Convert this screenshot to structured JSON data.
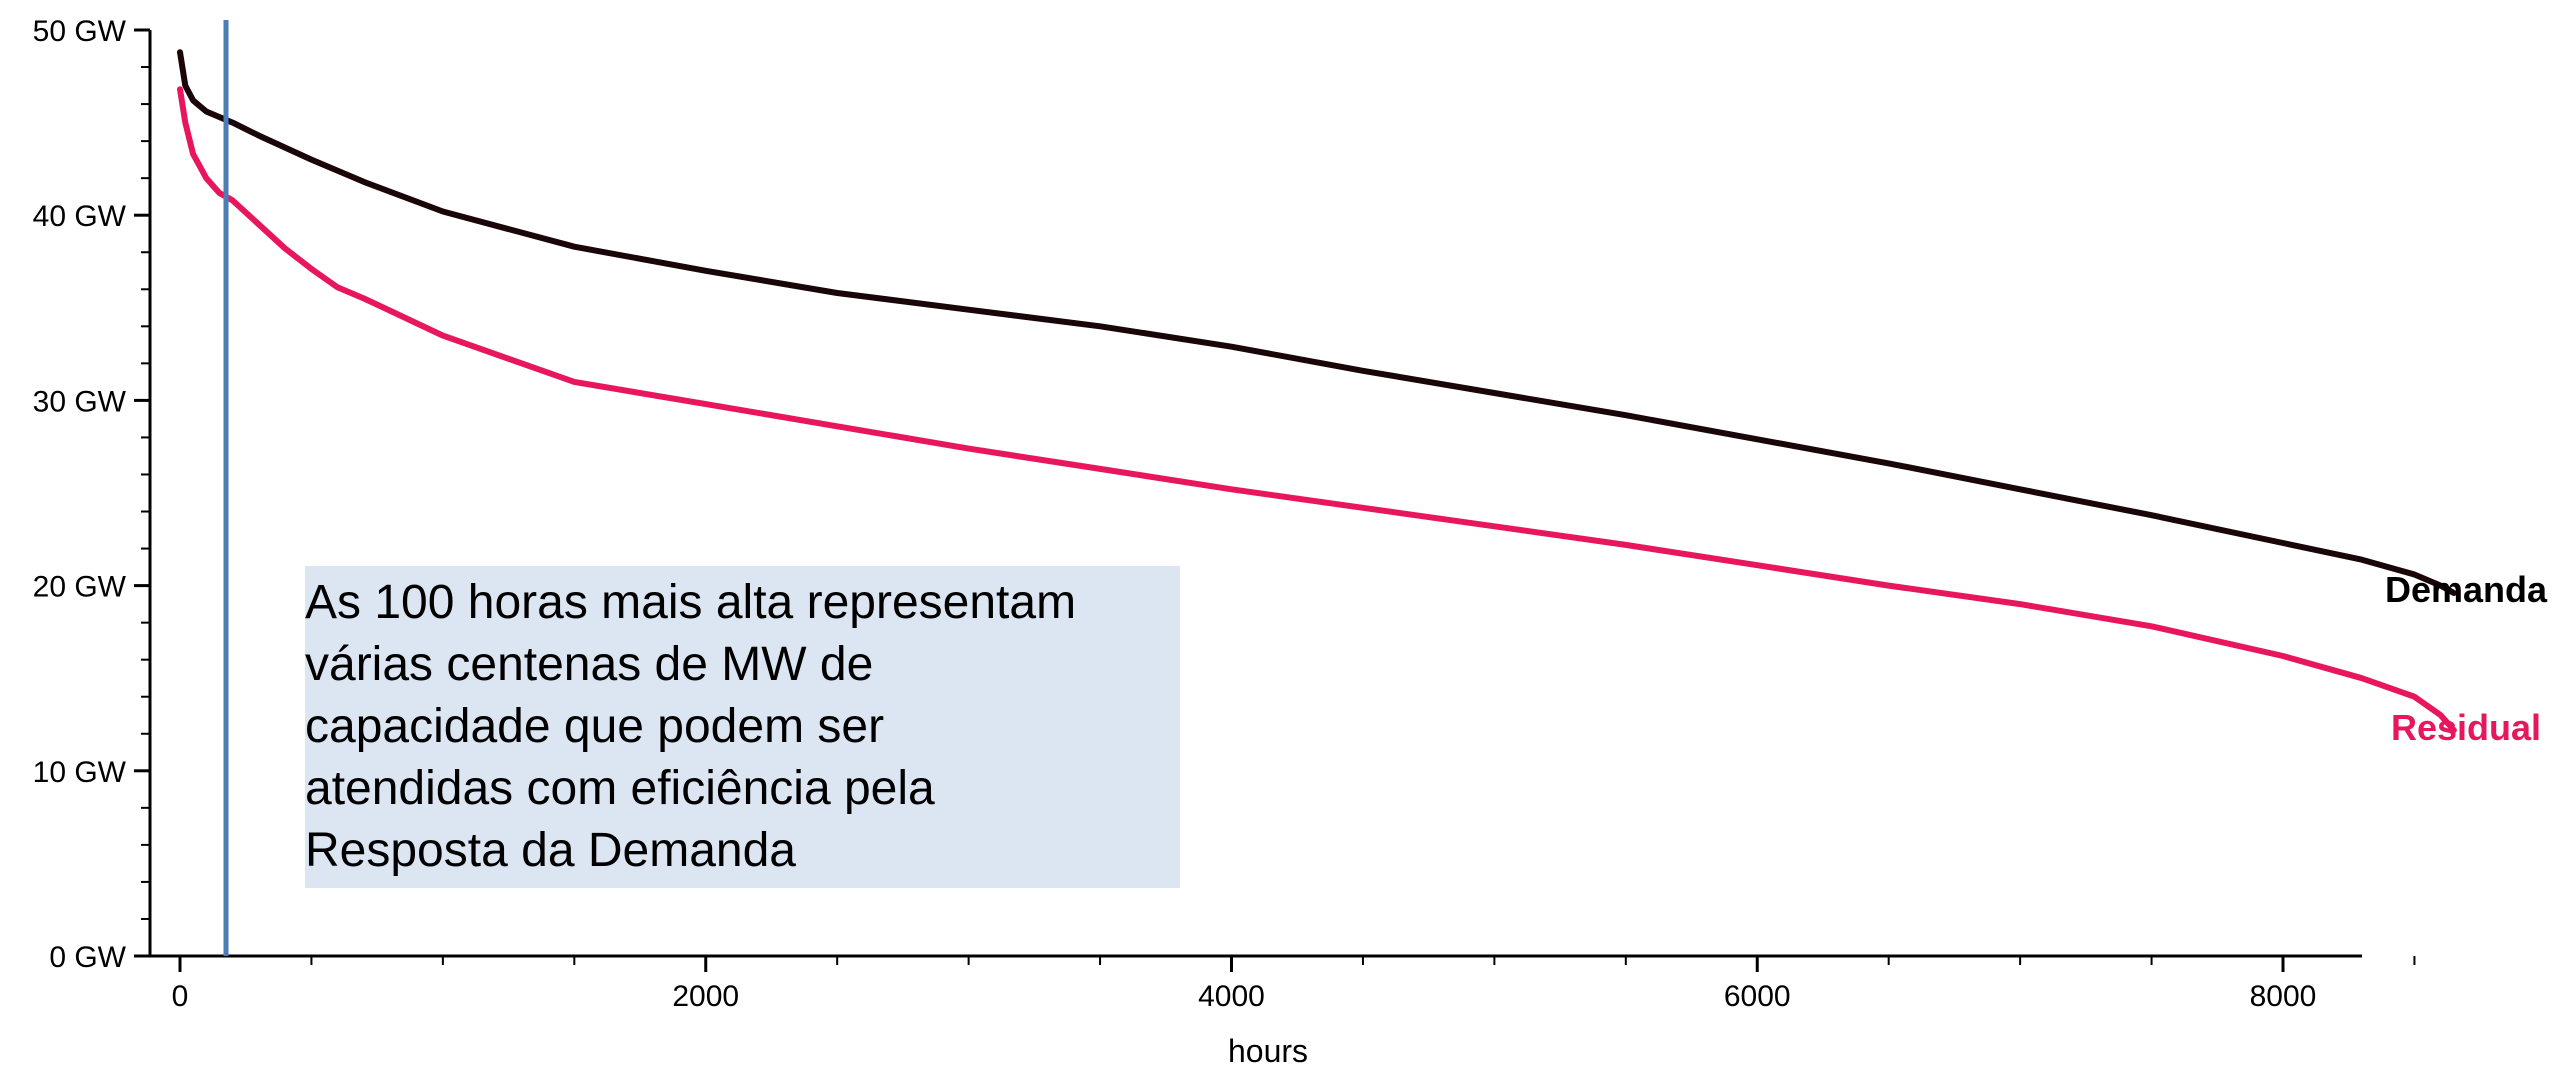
{
  "colors": {
    "demand": "#1a0508",
    "residual": "#e8175d",
    "marker": "#4a7fb5",
    "axis": "#000000",
    "annotation_bg": "#dce6f2"
  },
  "annotation": {
    "lines": [
      "As 100 horas mais alta representam",
      "várias centenas de MW de",
      "capacidade que podem ser",
      "atendidas com eficiência pela",
      "Resposta da Demanda"
    ]
  },
  "chart_data": {
    "type": "line",
    "title": "",
    "xlabel": "hours",
    "ylabel": "",
    "xlim": [
      -100,
      8660
    ],
    "ylim": [
      0,
      50
    ],
    "x_ticks": [
      0,
      2000,
      4000,
      6000,
      8000
    ],
    "x_tick_labels": [
      "0",
      "2000",
      "4000",
      "6000",
      "8000"
    ],
    "y_ticks": [
      0,
      10,
      20,
      30,
      40,
      50
    ],
    "y_tick_labels": [
      "0 GW",
      "10 GW",
      "20 GW",
      "30 GW",
      "40 GW",
      "50 GW"
    ],
    "marker_x": 175,
    "grid": false,
    "legend": "line-end labels",
    "series": [
      {
        "name": "Demanda",
        "x": [
          0,
          20,
          50,
          100,
          200,
          300,
          500,
          700,
          1000,
          1500,
          2000,
          2500,
          3000,
          3500,
          4000,
          4500,
          5000,
          5500,
          6000,
          6500,
          7000,
          7500,
          8000,
          8300,
          8500,
          8600,
          8650
        ],
        "y": [
          48.8,
          47.0,
          46.2,
          45.6,
          45.0,
          44.3,
          43.0,
          41.8,
          40.2,
          38.3,
          37.0,
          35.8,
          34.9,
          34.0,
          32.9,
          31.6,
          30.4,
          29.2,
          27.9,
          26.6,
          25.2,
          23.8,
          22.3,
          21.4,
          20.6,
          20.0,
          19.6
        ]
      },
      {
        "name": "Residual",
        "x": [
          0,
          20,
          50,
          100,
          150,
          200,
          300,
          400,
          500,
          600,
          700,
          1000,
          1500,
          2000,
          2500,
          3000,
          3500,
          4000,
          4500,
          5000,
          5500,
          6000,
          6500,
          7000,
          7500,
          8000,
          8300,
          8500,
          8600,
          8650
        ],
        "y": [
          46.8,
          45.0,
          43.3,
          42.0,
          41.2,
          40.8,
          39.5,
          38.2,
          37.1,
          36.1,
          35.5,
          33.5,
          31.0,
          29.8,
          28.6,
          27.4,
          26.3,
          25.2,
          24.2,
          23.2,
          22.2,
          21.1,
          20.0,
          19.0,
          17.8,
          16.2,
          15.0,
          14.0,
          13.0,
          12.2
        ]
      }
    ]
  }
}
